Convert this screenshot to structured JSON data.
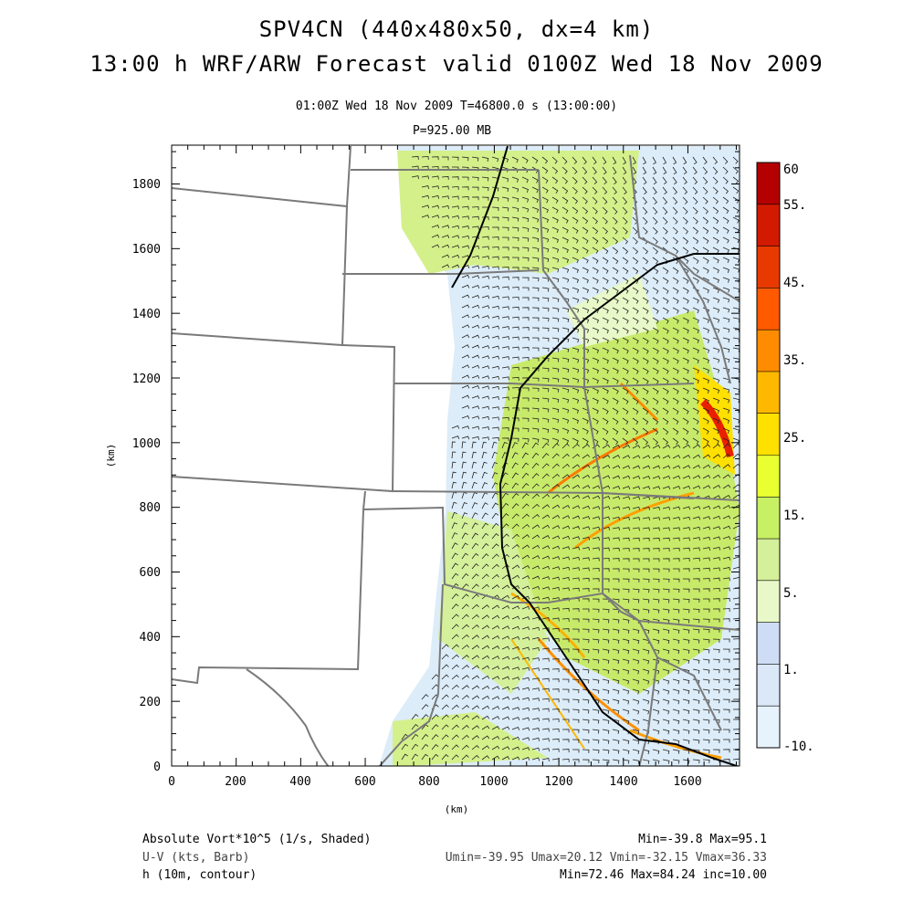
{
  "header": {
    "title": "SPV4CN (440x480x50, dx=4 km)",
    "subtitle": "13:00 h WRF/ARW Forecast valid 0100Z Wed 18 Nov 2009",
    "time_line": "01:00Z Wed 18 Nov 2009     T=46800.0 s (13:00:00)",
    "level": "P=925.00 MB"
  },
  "axes": {
    "xlabel": "(km)",
    "ylabel": "(km)",
    "x_ticks": [
      "0",
      "200",
      "400",
      "600",
      "800",
      "1000",
      "1200",
      "1400",
      "1600"
    ],
    "y_ticks": [
      "0",
      "200",
      "400",
      "600",
      "800",
      "1000",
      "1200",
      "1400",
      "1600",
      "1800"
    ],
    "x_range": [
      0,
      1760
    ],
    "y_range": [
      0,
      1920
    ]
  },
  "colorbar": {
    "labels": [
      "60",
      "55.",
      "45.",
      "35.",
      "25.",
      "15.",
      "5.",
      "1.",
      "-10."
    ],
    "colors": [
      "#b40000",
      "#d21a00",
      "#e83a00",
      "#ff5a00",
      "#ff8c00",
      "#ffb800",
      "#ffe000",
      "#e9ff30",
      "#c8f064",
      "#d4f09a",
      "#e8f8c8",
      "#cfdcf5",
      "#dae8f8",
      "#e6f2fc"
    ]
  },
  "footer": {
    "var1": "Absolute Vort*10^5 (1/s, Shaded)",
    "var1_stats": "Min=-39.8 Max=95.1",
    "var2": "U-V (kts, Barb)",
    "var2_stats": "Umin=-39.95 Umax=20.12 Vmin=-32.15 Vmax=36.33",
    "var3": "h (10m, contour)",
    "var3_stats": "Min=72.46 Max=84.24 inc=10.00"
  }
}
